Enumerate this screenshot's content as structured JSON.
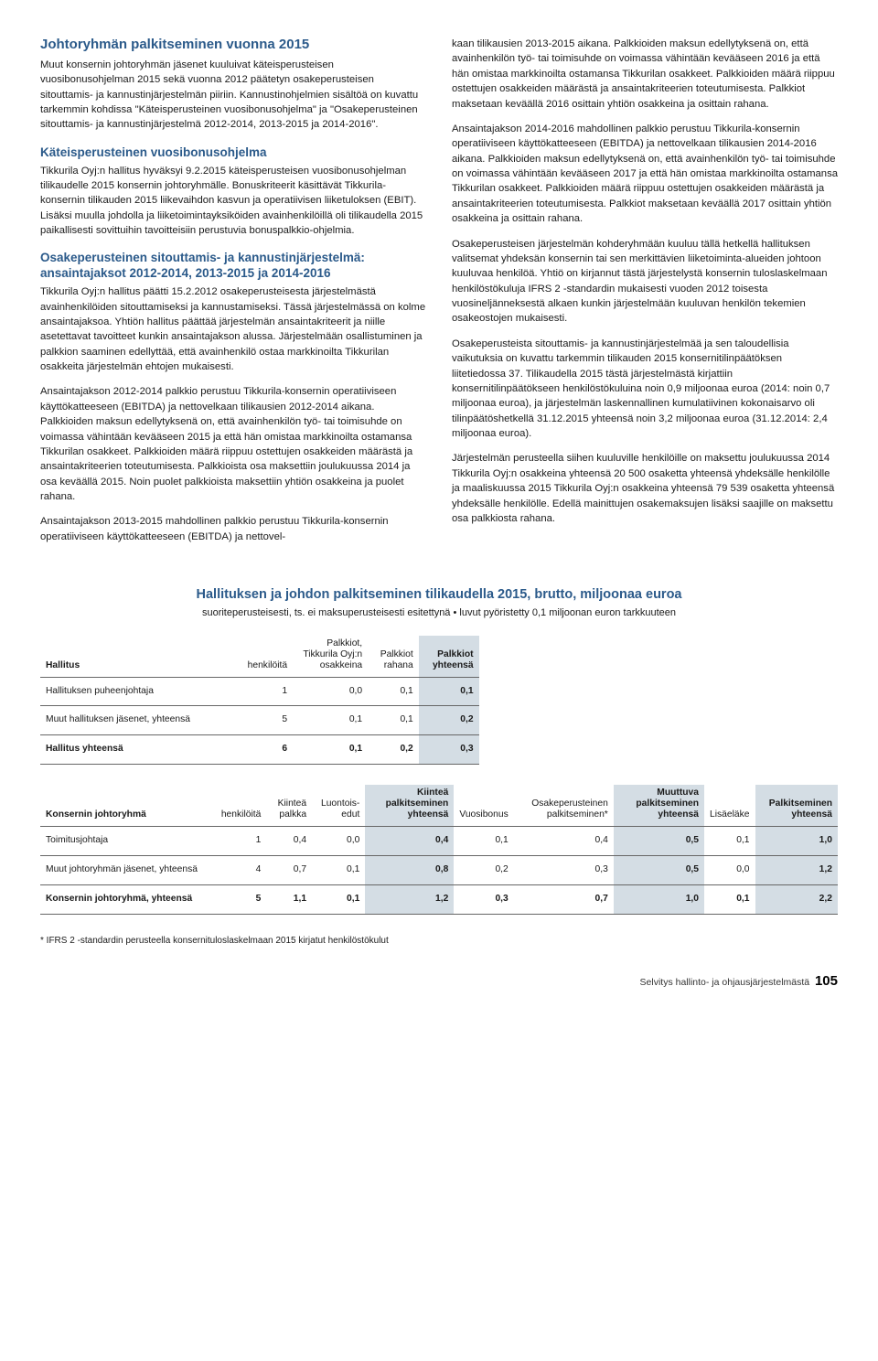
{
  "left": {
    "h_main": "Johtoryhmän palkitseminen vuonna 2015",
    "p1": "Muut konsernin johtoryhmän jäsenet kuuluivat käteisperusteisen vuosibonusohjelman 2015 sekä vuonna 2012 päätetyn osakeperusteisen sitouttamis- ja kannustinjärjestelmän piiriin. Kannustinohjelmien sisältöä on kuvattu tarkemmin kohdissa \"Käteisperusteinen vuosibonusohjelma\" ja \"Osakeperusteinen sitouttamis- ja kannustinjärjestelmä 2012-2014, 2013-2015 ja 2014-2016\".",
    "h_kateis": "Käteisperusteinen vuosibonusohjelma",
    "p2": "Tikkurila Oyj:n hallitus hyväksyi 9.2.2015 käteisperusteisen vuosibonusohjelman tilikaudelle 2015 konsernin johtoryhmälle. Bonuskriteerit käsittävät Tikkurila-konsernin tilikauden 2015 liikevaihdon kasvun ja operatiivisen liiketuloksen (EBIT). Lisäksi muulla johdolla ja liiketoimintayksiköiden avainhenkilöillä oli tilikaudella 2015 paikallisesti sovittuihin tavoitteisiin perustuvia bonuspalkkio-ohjelmia.",
    "h_osake": "Osakeperusteinen sitouttamis- ja kannustinjärjestelmä: ansaintajaksot 2012-2014, 2013-2015 ja 2014-2016",
    "p3": "Tikkurila Oyj:n hallitus päätti 15.2.2012 osakeperusteisesta järjestelmästä avainhenkilöiden sitouttamiseksi ja kannustamiseksi. Tässä järjestelmässä on kolme ansaintajaksoa. Yhtiön hallitus päättää järjestelmän ansaintakriteerit ja niille asetettavat tavoitteet kunkin ansaintajakson alussa. Järjestelmään osallistuminen ja palkkion saaminen edellyttää, että avainhenkilö ostaa markkinoilta Tikkurilan osakkeita järjestelmän ehtojen mukaisesti.",
    "p4": "Ansaintajakson 2012-2014 palkkio perustuu Tikkurila-konsernin operatiiviseen käyttökatteeseen (EBITDA) ja nettovelkaan tilikausien 2012-2014 aikana. Palkkioiden maksun edellytyksenä on, että avainhenkilön työ- tai toimisuhde on voimassa vähintään kevääseen 2015 ja että hän omistaa markkinoilta ostamansa Tikkurilan osakkeet. Palkkioiden määrä riippuu ostettujen osakkeiden määrästä ja ansaintakriteerien toteutumisesta. Palkkioista osa maksettiin joulukuussa 2014 ja osa keväällä 2015. Noin puolet palkkioista maksettiin yhtiön osakkeina ja puolet rahana.",
    "p5": "Ansaintajakson 2013-2015 mahdollinen palkkio perustuu Tikkurila-konsernin operatiiviseen käyttökatteeseen (EBITDA) ja nettovel-"
  },
  "right": {
    "p1": "kaan tilikausien 2013-2015 aikana. Palkkioiden maksun edellytyksenä on, että avainhenkilön työ- tai toimisuhde on voimassa vähintään kevääseen 2016 ja että hän omistaa markkinoilta ostamansa Tikkurilan osakkeet. Palkkioiden määrä riippuu ostettujen osakkeiden määrästä ja ansaintakriteerien toteutumisesta. Palkkiot maksetaan keväällä 2016 osittain yhtiön osakkeina ja osittain rahana.",
    "p2": "Ansaintajakson 2014-2016 mahdollinen palkkio perustuu Tikkurila-konsernin operatiiviseen käyttökatteeseen (EBITDA) ja nettovelkaan tilikausien 2014-2016 aikana. Palkkioiden maksun edellytyksenä on, että avainhenkilön työ- tai toimisuhde on voimassa vähintään kevääseen 2017 ja että hän omistaa markkinoilta ostamansa Tikkurilan osakkeet. Palkkioiden määrä riippuu ostettujen osakkeiden määrästä ja ansaintakriteerien toteutumisesta. Palkkiot maksetaan keväällä 2017 osittain yhtiön osakkeina ja osittain rahana.",
    "p3": "Osakeperusteisen järjestelmän kohderyhmään kuuluu tällä hetkellä hallituksen valitsemat yhdeksän konsernin tai sen merkittävien liiketoiminta-alueiden johtoon kuuluvaa henkilöä. Yhtiö on kirjannut tästä järjestelystä konsernin tuloslaskelmaan henkilöstökuluja IFRS 2 -standardin mukaisesti vuoden 2012 toisesta vuosineljänneksestä alkaen kunkin järjestelmään kuuluvan henkilön tekemien osakeostojen mukaisesti.",
    "p4": "Osakeperusteista sitouttamis- ja kannustinjärjestelmää ja sen taloudellisia vaikutuksia on kuvattu tarkemmin tilikauden 2015 konsernitilinpäätöksen liitetiedossa 37. Tilikaudella 2015 tästä järjestelmästä kirjattiin konsernitilinpäätökseen henkilöstökuluina noin 0,9 miljoonaa euroa (2014: noin 0,7 miljoonaa euroa), ja järjestelmän laskennallinen kumulatiivinen kokonaisarvo oli tilinpäätöshetkellä 31.12.2015 yhteensä noin 3,2 miljoonaa euroa (31.12.2014: 2,4 miljoonaa euroa).",
    "p5": "Järjestelmän perusteella siihen kuuluville henkilöille on maksettu joulukuussa 2014 Tikkurila Oyj:n osakkeina yhteensä 20 500 osaketta yhteensä yhdeksälle henkilölle ja maaliskuussa 2015 Tikkurila Oyj:n osakkeina yhteensä 79 539 osaketta yhteensä yhdeksälle henkilölle. Edellä mainittujen osakemaksujen lisäksi saajille on maksettu osa palkkiosta rahana."
  },
  "tables": {
    "title": "Hallituksen ja johdon palkitseminen tilikaudella 2015, brutto, miljoonaa euroa",
    "subtitle": "suoriteperusteisesti, ts. ei maksuperusteisesti esitettynä • luvut pyöristetty 0,1 miljoonan euron tarkkuuteen",
    "t1": {
      "head": [
        "Hallitus",
        "henkilöitä",
        "Palkkiot, Tikkurila Oyj:n osakkeina",
        "Palkkiot rahana",
        "Palkkiot yhteensä"
      ],
      "rows": [
        [
          "Hallituksen puheenjohtaja",
          "1",
          "0,0",
          "0,1",
          "0,1"
        ],
        [
          "Muut hallituksen jäsenet, yhteensä",
          "5",
          "0,1",
          "0,1",
          "0,2"
        ],
        [
          "Hallitus yhteensä",
          "6",
          "0,1",
          "0,2",
          "0,3"
        ]
      ]
    },
    "t2": {
      "head": [
        "Konsernin johtoryhmä",
        "henkilöitä",
        "Kiinteä palkka",
        "Luontois-edut",
        "Kiinteä palkitseminen yhteensä",
        "Vuosibonus",
        "Osakeperusteinen palkitseminen*",
        "Muuttuva palkitseminen yhteensä",
        "Lisäeläke",
        "Palkitseminen yhteensä"
      ],
      "rows": [
        [
          "Toimitusjohtaja",
          "1",
          "0,4",
          "0,0",
          "0,4",
          "0,1",
          "0,4",
          "0,5",
          "0,1",
          "1,0"
        ],
        [
          "Muut johtoryhmän jäsenet, yhteensä",
          "4",
          "0,7",
          "0,1",
          "0,8",
          "0,2",
          "0,3",
          "0,5",
          "0,0",
          "1,2"
        ],
        [
          "Konsernin johtoryhmä, yhteensä",
          "5",
          "1,1",
          "0,1",
          "1,2",
          "0,3",
          "0,7",
          "1,0",
          "0,1",
          "2,2"
        ]
      ]
    },
    "footnote": "* IFRS 2 -standardin perusteella konsernituloslaskelmaan 2015 kirjatut henkilöstökulut"
  },
  "footer": {
    "label": "Selvitys hallinto- ja ohjausjärjestelmästä",
    "page": "105"
  }
}
